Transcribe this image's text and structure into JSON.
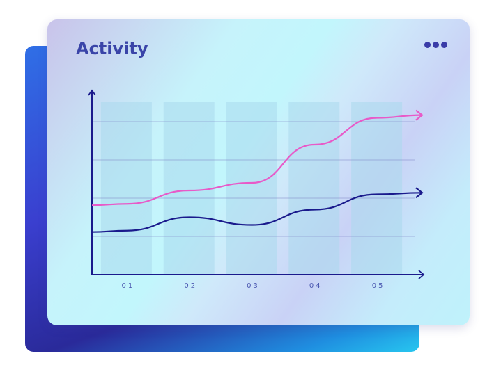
{
  "card": {
    "title": "Activity",
    "menu_icon": "more-horizontal-icon"
  },
  "colors": {
    "pink": "#e85ac8",
    "navy": "#1a1a8c",
    "bars": "#a9d8ec",
    "axis": "#1a1a8c"
  },
  "chart_data": {
    "type": "line",
    "title": "Activity",
    "categories": [
      "01",
      "02",
      "03",
      "04",
      "05"
    ],
    "series": [
      {
        "color": "#e85ac8",
        "values": [
          1.85,
          2.2,
          2.4,
          3.4,
          4.1
        ]
      },
      {
        "color": "#1a1a8c",
        "values": [
          1.15,
          1.5,
          1.3,
          1.7,
          2.1
        ]
      }
    ],
    "background_bars": true,
    "ylim": [
      0,
      5
    ],
    "grid": true,
    "y_tick_labels": false
  }
}
